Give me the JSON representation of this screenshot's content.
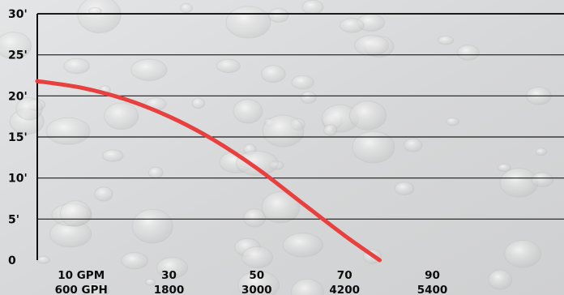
{
  "chart_data": {
    "type": "line",
    "title": "",
    "xlabel": "",
    "ylabel": "",
    "y_unit": "ft",
    "x_unit": "GPM",
    "xlim": [
      0,
      120
    ],
    "ylim": [
      0,
      30
    ],
    "y_ticks": [
      {
        "value": 0,
        "label": "0"
      },
      {
        "value": 5,
        "label": "5'"
      },
      {
        "value": 10,
        "label": "10'"
      },
      {
        "value": 15,
        "label": "15'"
      },
      {
        "value": 20,
        "label": "20'"
      },
      {
        "value": 25,
        "label": "25'"
      },
      {
        "value": 30,
        "label": "30'"
      }
    ],
    "x_ticks": [
      {
        "value": 10,
        "gpm_label": "10 GPM",
        "gph_label": "600 GPH"
      },
      {
        "value": 30,
        "gpm_label": "30",
        "gph_label": "1800"
      },
      {
        "value": 50,
        "gpm_label": "50",
        "gph_label": "3000"
      },
      {
        "value": 70,
        "gpm_label": "70",
        "gph_label": "4200"
      },
      {
        "value": 90,
        "gpm_label": "90",
        "gph_label": "5400"
      }
    ],
    "grid": true,
    "series": [
      {
        "color": "#e8403f",
        "x": [
          0,
          10,
          20,
          30,
          40,
          50,
          60,
          70,
          78
        ],
        "y": [
          21.8,
          21.0,
          19.6,
          17.5,
          14.7,
          11.2,
          7.1,
          3.0,
          0
        ]
      }
    ]
  },
  "colors": {
    "background": "#d9dadb",
    "axis": "#0f0f0f",
    "gridline": "#1b1b1b",
    "curve": "#e8403f"
  }
}
